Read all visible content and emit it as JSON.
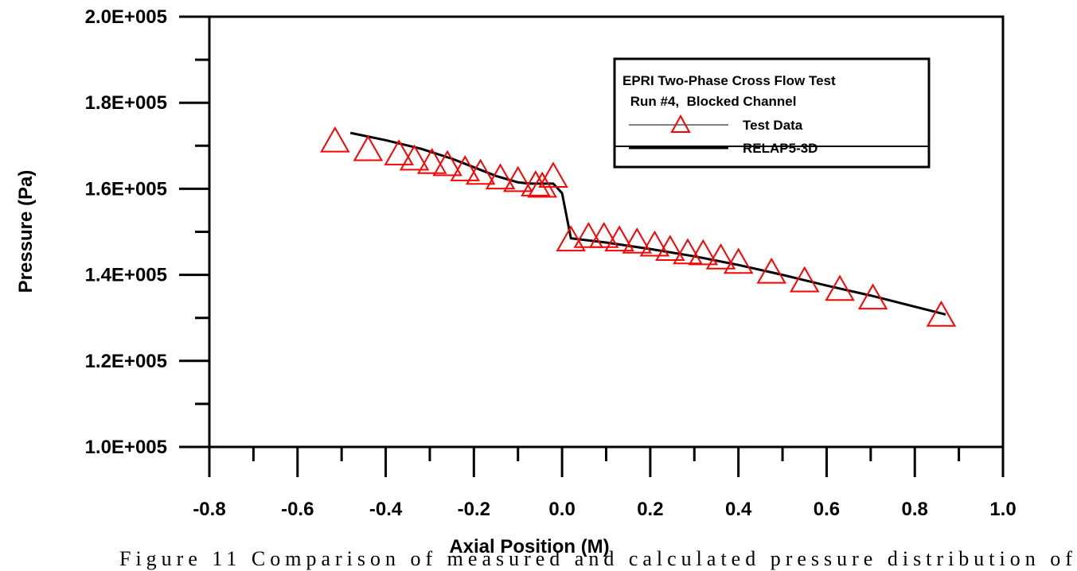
{
  "chart_data": {
    "type": "line",
    "xlabel": "Axial Position  (M)",
    "ylabel": "Pressure (Pa)",
    "xlim": [
      -0.8,
      1.0
    ],
    "ylim": [
      100000,
      200000
    ],
    "x_ticks": [
      -0.8,
      -0.6,
      -0.4,
      -0.2,
      0.0,
      0.2,
      0.4,
      0.6,
      0.8,
      1.0
    ],
    "x_tick_labels": [
      "-0.8",
      "-0.6",
      "-0.4",
      "-0.2",
      "0.0",
      "0.2",
      "0.4",
      "0.6",
      "0.8",
      "1.0"
    ],
    "y_ticks": [
      100000,
      120000,
      140000,
      160000,
      180000,
      200000
    ],
    "y_tick_labels": [
      "1.0E+005",
      "1.2E+005",
      "1.4E+005",
      "1.6E+005",
      "1.8E+005",
      "2.0E+005"
    ],
    "y_minor_step": 10000,
    "x_minor_step": 0.1,
    "grid": false,
    "legend": {
      "placement": "top-right",
      "title_lines": [
        "EPRI Two-Phase Cross Flow Test",
        " Run #4,  Blocked Channel"
      ]
    },
    "series": [
      {
        "name": "Test Data",
        "style": "markers",
        "marker": "triangle-open",
        "color": "#ff0000",
        "x": [
          -0.515,
          -0.44,
          -0.37,
          -0.335,
          -0.295,
          -0.26,
          -0.22,
          -0.185,
          -0.14,
          -0.1,
          -0.06,
          -0.045,
          -0.02,
          0.02,
          0.06,
          0.095,
          0.13,
          0.17,
          0.21,
          0.245,
          0.285,
          0.32,
          0.36,
          0.4,
          0.475,
          0.55,
          0.63,
          0.705,
          0.86
        ],
        "y": [
          171000,
          169000,
          168000,
          166800,
          166000,
          165500,
          164300,
          163500,
          162400,
          161800,
          160800,
          160500,
          162800,
          148000,
          148800,
          148800,
          148000,
          147500,
          146800,
          145800,
          145000,
          144800,
          143800,
          142800,
          140500,
          138500,
          136500,
          134500,
          130500
        ]
      },
      {
        "name": "RELAP5-3D",
        "style": "line",
        "color": "#000000",
        "x": [
          -0.48,
          -0.4,
          -0.32,
          -0.25,
          -0.2,
          -0.15,
          -0.1,
          -0.075,
          -0.02,
          0.0,
          0.02,
          0.1,
          0.2,
          0.3,
          0.4,
          0.5,
          0.6,
          0.7,
          0.87
        ],
        "y": [
          173000,
          171300,
          169300,
          167000,
          165000,
          163000,
          161500,
          161200,
          161200,
          159000,
          148500,
          147500,
          146000,
          144300,
          142300,
          140000,
          137500,
          135200,
          130800
        ]
      }
    ]
  },
  "caption_text": "Figure 11 Comparison of measured and calculated pressure distribution of"
}
